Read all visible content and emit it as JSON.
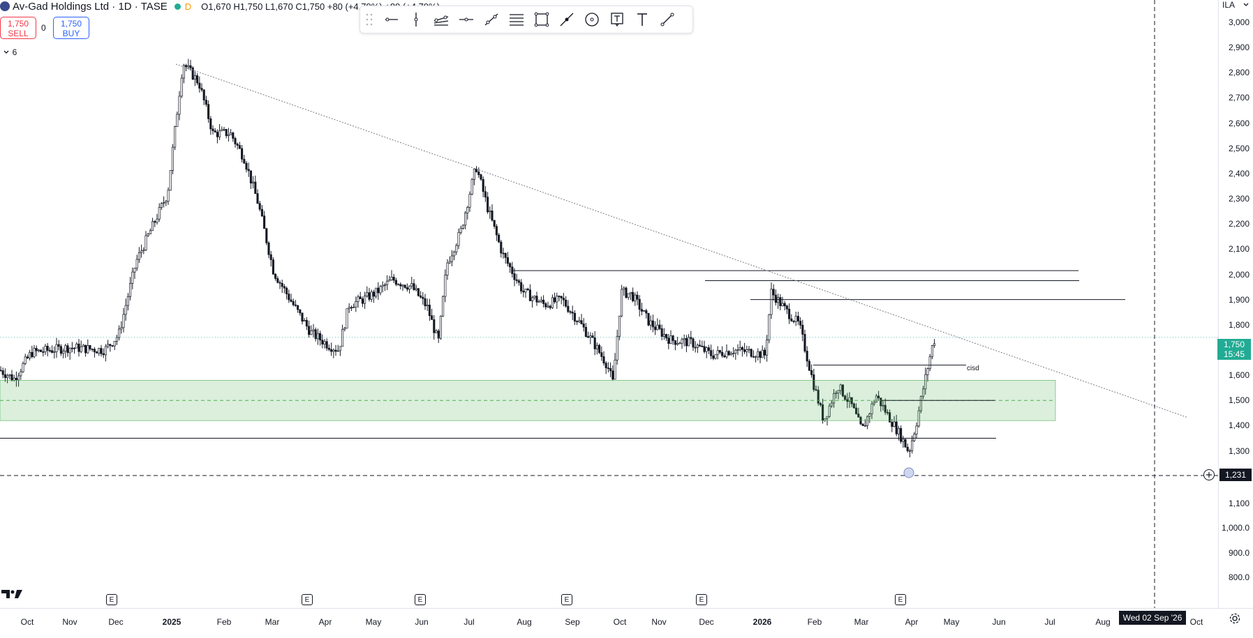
{
  "legend": {
    "title": "Av-Gad Holdings Ltd · 1D · TASE",
    "interval_badge": "D",
    "ohlc": "O1,670  H1,750  L1,670  C1,750  +80 (+4.79%)  +80 (+4.79%)"
  },
  "trade": {
    "sell_price": "1,750",
    "sell_label": "SELL",
    "spread": "0",
    "buy_price": "1,750",
    "buy_label": "BUY"
  },
  "indicators_toggle": {
    "count": "6"
  },
  "currency": "ILA",
  "price_axis": {
    "ticks": [
      "3,000",
      "2,900",
      "2,800",
      "2,700",
      "2,600",
      "2,500",
      "2,400",
      "2,300",
      "2,200",
      "2,100",
      "2,000",
      "1,900",
      "1,800",
      "1,700",
      "1,600",
      "1,500",
      "1,400",
      "1,300",
      "1,200",
      "1,100",
      "1,000.0",
      "900.0",
      "800.0"
    ],
    "tick_values": [
      3000,
      2900,
      2800,
      2700,
      2600,
      2500,
      2400,
      2300,
      2200,
      2100,
      2000,
      1900,
      1800,
      1700,
      1600,
      1500,
      1400,
      1300,
      1200,
      1100,
      1000,
      900,
      800
    ]
  },
  "last_price": {
    "value": "1,750",
    "countdown": "15:45"
  },
  "crosshair": {
    "price": "1,231",
    "date": "Wed 02 Sep '26"
  },
  "time_axis": {
    "labels": [
      {
        "text": "Oct",
        "bold": false
      },
      {
        "text": "Nov",
        "bold": false
      },
      {
        "text": "Dec",
        "bold": false
      },
      {
        "text": "2025",
        "bold": true
      },
      {
        "text": "Feb",
        "bold": false
      },
      {
        "text": "Mar",
        "bold": false
      },
      {
        "text": "Apr",
        "bold": false
      },
      {
        "text": "May",
        "bold": false
      },
      {
        "text": "Jun",
        "bold": false
      },
      {
        "text": "Jul",
        "bold": false
      },
      {
        "text": "Aug",
        "bold": false
      },
      {
        "text": "Sep",
        "bold": false
      },
      {
        "text": "Oct",
        "bold": false
      },
      {
        "text": "Nov",
        "bold": false
      },
      {
        "text": "Dec",
        "bold": false
      },
      {
        "text": "2026",
        "bold": true
      },
      {
        "text": "Feb",
        "bold": false
      },
      {
        "text": "Mar",
        "bold": false
      },
      {
        "text": "Apr",
        "bold": false
      },
      {
        "text": "May",
        "bold": false
      },
      {
        "text": "Jun",
        "bold": false
      },
      {
        "text": "Jul",
        "bold": false
      },
      {
        "text": "Aug",
        "bold": false
      },
      {
        "text": "Oct",
        "bold": false
      }
    ]
  },
  "earnings_markers": [
    "E",
    "E",
    "E",
    "E",
    "E",
    "E"
  ],
  "drawing_label": "cisd",
  "toolbar_tools": [
    "horizontal-ray",
    "vertical-line",
    "parallel-channel",
    "horizontal-line",
    "trend-angle",
    "fib-retracement",
    "rectangle",
    "brush",
    "circle",
    "note",
    "text",
    "trend-line"
  ],
  "chart_data": {
    "type": "candlestick",
    "title": "Av-Gad Holdings Ltd · 1D · TASE",
    "ylim": [
      750,
      3050
    ],
    "key_points": [
      {
        "date": "2024-10",
        "close": 1600
      },
      {
        "date": "2024-12",
        "close": 1700
      },
      {
        "date": "2025-01",
        "close": 2850
      },
      {
        "date": "2025-02",
        "close": 2500
      },
      {
        "date": "2025-04",
        "close": 1690
      },
      {
        "date": "2025-05",
        "close": 1980
      },
      {
        "date": "2025-06",
        "close": 1720
      },
      {
        "date": "2025-07",
        "close": 2450
      },
      {
        "date": "2025-08",
        "close": 1920
      },
      {
        "date": "2025-09",
        "close": 1560
      },
      {
        "date": "2025-10",
        "close": 2010
      },
      {
        "date": "2025-12",
        "close": 1650
      },
      {
        "date": "2026-01",
        "close": 1970
      },
      {
        "date": "2026-02",
        "close": 1400
      },
      {
        "date": "2026-03",
        "close": 1380
      },
      {
        "date": "2026-04",
        "close": 1290
      },
      {
        "date": "2026-04",
        "close": 1750
      }
    ],
    "horizontal_levels": [
      2015,
      1975,
      1900,
      1640,
      1500,
      1350
    ],
    "zone": [
      1420,
      1580
    ],
    "last": 1750
  }
}
